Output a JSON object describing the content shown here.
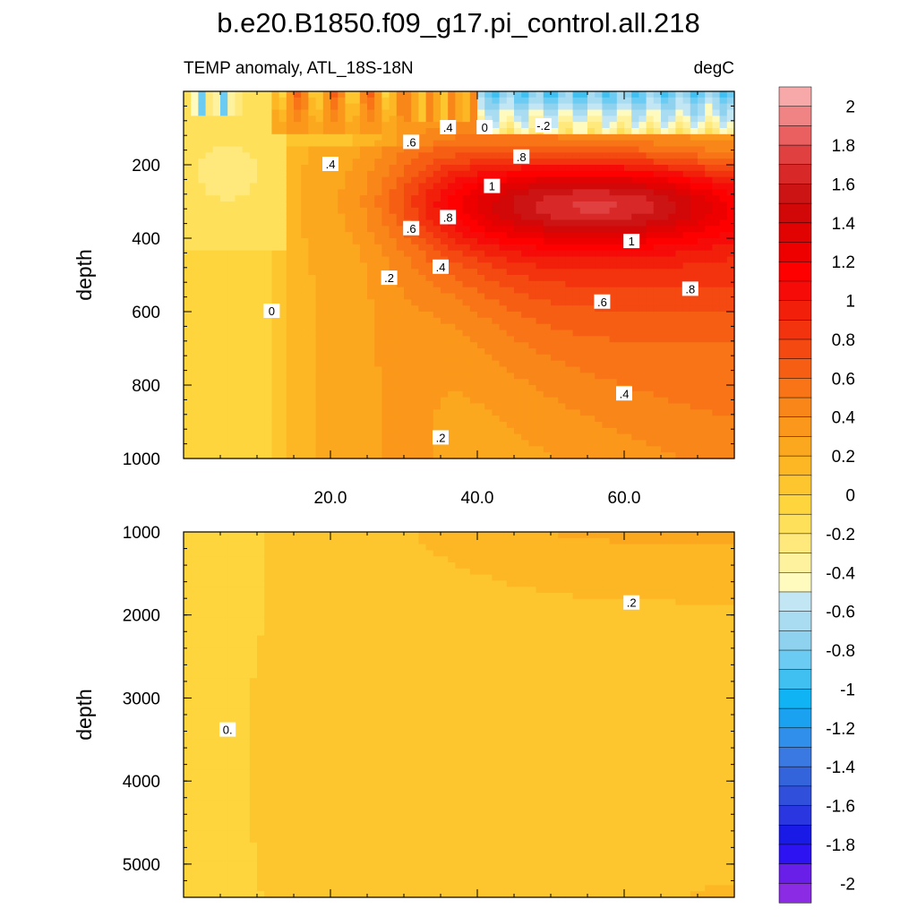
{
  "title": "b.e20.B1850.f09_g17.pi_control.all.218",
  "chart_data": {
    "type": "heatmap",
    "variable": "TEMP anomaly, ATL_18S-18N",
    "units": "degC",
    "ylabel": "depth",
    "xlim": [
      0,
      75
    ],
    "x_ticks": [
      20.0,
      40.0,
      60.0
    ],
    "x_tick_labels": [
      "20.0",
      "40.0",
      "60.0"
    ],
    "panels": [
      {
        "name": "upper",
        "ylim": [
          0,
          1000
        ],
        "y_reversed": true,
        "y_ticks": [
          200,
          400,
          600,
          800,
          1000
        ],
        "y_tick_labels": [
          "200",
          "400",
          "600",
          "800",
          "1000"
        ],
        "contour_labels": [
          {
            "text": "0",
            "x": 41,
            "y": 100
          },
          {
            "text": "-.2",
            "x": 49,
            "y": 95
          },
          {
            "text": ".4",
            "x": 36,
            "y": 100
          },
          {
            "text": ".6",
            "x": 31,
            "y": 140
          },
          {
            "text": ".4",
            "x": 20,
            "y": 200
          },
          {
            "text": ".8",
            "x": 46,
            "y": 180
          },
          {
            "text": "1",
            "x": 42,
            "y": 260
          },
          {
            "text": ".8",
            "x": 36,
            "y": 345
          },
          {
            "text": ".6",
            "x": 31,
            "y": 375
          },
          {
            "text": "1",
            "x": 61,
            "y": 410
          },
          {
            "text": ".4",
            "x": 35,
            "y": 480
          },
          {
            "text": ".2",
            "x": 28,
            "y": 510
          },
          {
            "text": ".8",
            "x": 69,
            "y": 540
          },
          {
            "text": ".6",
            "x": 57,
            "y": 575
          },
          {
            "text": "0",
            "x": 12,
            "y": 600
          },
          {
            "text": ".4",
            "x": 60,
            "y": 825
          },
          {
            "text": ".2",
            "x": 35,
            "y": 945
          }
        ]
      },
      {
        "name": "lower",
        "ylim": [
          1000,
          5400
        ],
        "y_reversed": true,
        "y_ticks": [
          1000,
          2000,
          3000,
          4000,
          5000
        ],
        "y_tick_labels": [
          "1000",
          "2000",
          "3000",
          "4000",
          "5000"
        ],
        "contour_labels": [
          {
            "text": ".2",
            "x": 61,
            "y": 1860
          },
          {
            "text": "0.",
            "x": 6,
            "y": 3390
          }
        ]
      }
    ],
    "colorbar": {
      "levels": [
        -2.1,
        -2.0,
        -1.9,
        -1.8,
        -1.7,
        -1.6,
        -1.5,
        -1.4,
        -1.3,
        -1.2,
        -1.1,
        -1.0,
        -0.9,
        -0.8,
        -0.7,
        -0.6,
        -0.5,
        -0.4,
        -0.3,
        -0.2,
        -0.1,
        0.0,
        0.1,
        0.2,
        0.3,
        0.4,
        0.5,
        0.6,
        0.7,
        0.8,
        0.9,
        1.0,
        1.1,
        1.2,
        1.3,
        1.4,
        1.5,
        1.6,
        1.7,
        1.8,
        1.9,
        2.0,
        2.1
      ],
      "label_values": [
        2,
        1.8,
        1.6,
        1.4,
        1.2,
        1,
        0.8,
        0.6,
        0.4,
        0.2,
        0,
        -0.2,
        -0.4,
        -0.6,
        -0.8,
        -1,
        -1.2,
        -1.4,
        -1.6,
        -1.8,
        -2
      ],
      "labels": [
        "2",
        "1.8",
        "1.6",
        "1.4",
        "1.2",
        "1",
        "0.8",
        "0.6",
        "0.4",
        "0.2",
        "0",
        "-0.2",
        "-0.4",
        "-0.6",
        "-0.8",
        "-1",
        "-1.2",
        "-1.4",
        "-1.6",
        "-1.8",
        "-2"
      ],
      "colors": [
        "#8b2be3",
        "#6a1fe8",
        "#2d13f2",
        "#1a1ae6",
        "#2a37e0",
        "#3050dc",
        "#3464dc",
        "#3a78e2",
        "#2f8fea",
        "#1aa1f0",
        "#10b4f4",
        "#3fc0f0",
        "#6ccbf2",
        "#8fd2f0",
        "#a9dcf0",
        "#c3e6f4",
        "#fffbbf",
        "#fff29f",
        "#ffe97c",
        "#ffe05a",
        "#fed53d",
        "#fdc62e",
        "#fdb624",
        "#fca81f",
        "#fb981b",
        "#f98619",
        "#f87416",
        "#f65e14",
        "#f44911",
        "#f3320e",
        "#f21f0b",
        "#f60b08",
        "#ff0000",
        "#ee0000",
        "#e10202",
        "#d20808",
        "#cc1414",
        "#d82828",
        "#e04040",
        "#ea6060",
        "#f08484",
        "#f7a8a8"
      ]
    }
  }
}
